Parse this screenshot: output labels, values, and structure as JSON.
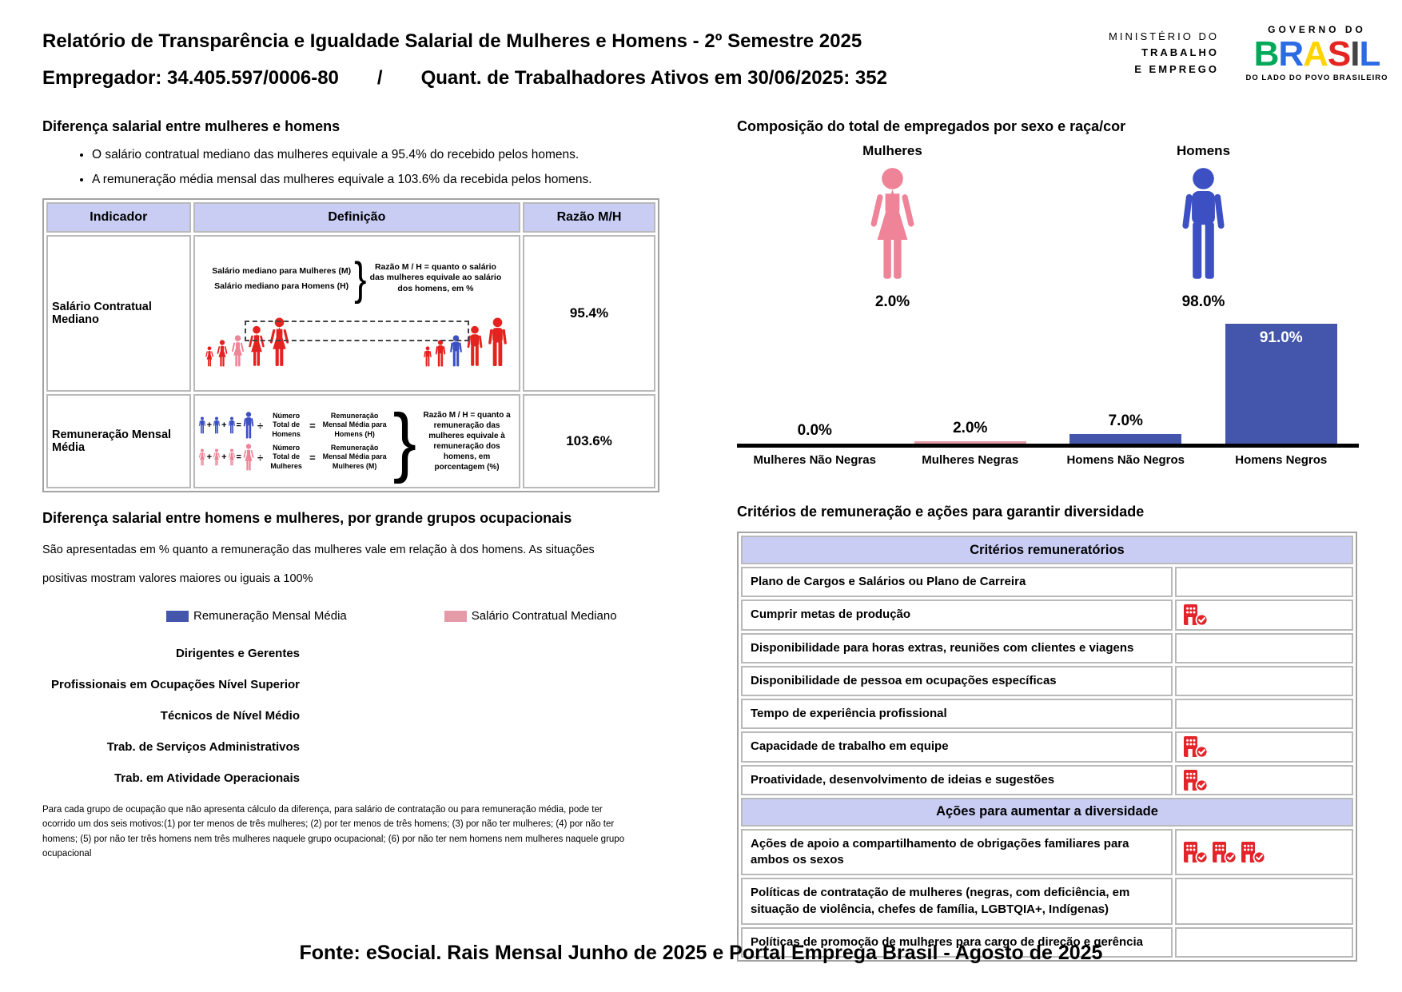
{
  "header": {
    "title": "Relatório de Transparência e Igualdade Salarial de Mulheres e Homens - 2º Semestre 2025",
    "subtitle_employer": "Empregador: 34.405.597/0006-80",
    "subtitle_separator": "/",
    "subtitle_workers": "Quant. de Trabalhadores Ativos em 30/06/2025: 352",
    "ministry_logo_lines": [
      "MINISTÉRIO DO",
      "TRABALHO",
      "E EMPREGO"
    ],
    "gov_logo": {
      "top": "GOVERNO DO",
      "word": "BRASIL",
      "tagline": "DO LADO DO POVO BRASILEIRO"
    }
  },
  "salary_diff": {
    "title": "Diferença salarial entre mulheres e homens",
    "bullets": [
      "O salário contratual mediano das mulheres equivale a 95.4% do recebido pelos homens.",
      "A remuneração média mensal das mulheres equivale a 103.6% da recebida pelos homens."
    ],
    "table": {
      "col_indicador": "Indicador",
      "col_definicao": "Definição",
      "col_razao": "Razão M/H",
      "row1": {
        "indicator": "Salário Contratual Mediano",
        "def_line1": "Salário mediano para Mulheres (M)",
        "def_line2": "Salário mediano para Homens (H)",
        "def_note": "Razão M / H = quanto o salário das mulheres equivale ao salário dos homens, em %",
        "ratio": "95.4%"
      },
      "row2": {
        "indicator": "Remuneração Mensal Média",
        "num_homens": "Número Total de Homens",
        "rem_homens": "Remuneração Mensal Média para Homens (H)",
        "num_mulheres": "Número Total de Mulheres",
        "rem_mulheres": "Remuneração Mensal Média para Mulheres (M)",
        "def_note": "Razão M / H = quanto a remuneração das mulheres equivale à remuneração dos homens, em porcentagem (%)",
        "ratio": "103.6%"
      }
    }
  },
  "composition": {
    "title": "Composição do total de empregados por sexo e raça/cor",
    "female_label": "Mulheres",
    "female_value": "2.0%",
    "male_label": "Homens",
    "male_value": "98.0%"
  },
  "occupational": {
    "title": "Diferença salarial entre homens e mulheres, por grande grupos ocupacionais",
    "description": "São apresentadas em % quanto a remuneração das mulheres vale em relação à dos homens. As situações positivas mostram valores maiores ou iguais a 100%",
    "footnote": "Para cada grupo de ocupação que não apresenta cálculo da diferença, para salário de contratação ou para remuneração média, pode ter ocorrido um dos seis motivos:(1) por ter menos de três mulheres; (2) por ter menos de três homens; (3) por não ter mulheres; (4) por não ter homens; (5) por não ter três homens nem três mulheres naquele grupo ocupacional; (6) por não ter nem homens nem mulheres naquele grupo ocupacional"
  },
  "criteria": {
    "title": "Critérios de remuneração e ações para garantir diversidade",
    "sections": [
      {
        "header": "Critérios remuneratórios",
        "rows": [
          {
            "label": "Plano de Cargos e Salários ou Plano de Carreira",
            "marks": 0
          },
          {
            "label": "Cumprir metas de produção",
            "marks": 1
          },
          {
            "label": "Disponibilidade para horas extras, reuniões com clientes e viagens",
            "marks": 0
          },
          {
            "label": "Disponibilidade de pessoa em ocupações específicas",
            "marks": 0
          },
          {
            "label": "Tempo de experiência profissional",
            "marks": 0
          },
          {
            "label": "Capacidade de trabalho em equipe",
            "marks": 1
          },
          {
            "label": "Proatividade, desenvolvimento de ideias e sugestões",
            "marks": 1
          }
        ]
      },
      {
        "header": "Ações para aumentar a diversidade",
        "rows": [
          {
            "label": "Ações de apoio a compartilhamento de obrigações familiares para ambos os sexos",
            "marks": 3
          },
          {
            "label": "Políticas de contratação de mulheres (negras, com deficiência, em situação de violência, chefes de família, LGBTQIA+, Indígenas)",
            "marks": 0
          },
          {
            "label": "Políticas de promoção de mulheres para cargo de direção e gerência",
            "marks": 0
          }
        ]
      }
    ]
  },
  "footer": {
    "source": "Fonte: eSocial. Rais Mensal Junho de 2025 e Portal Emprega Brasil - Agosto de 2025"
  },
  "colors": {
    "header_band": "#c9cdf4",
    "red_figure": "#e42320",
    "pink_figure": "#ef8498",
    "blue_figure": "#3c50c3",
    "blue_bar": "#4456ab",
    "pink_bar": "#e59aa7",
    "icon_red": "#e3242b"
  },
  "chart_data": [
    {
      "type": "bar",
      "title": "Composição do total de empregados por sexo e raça/cor",
      "categories": [
        "Mulheres Não Negras",
        "Mulheres Negras",
        "Homens Não Negros",
        "Homens Negros"
      ],
      "values": [
        0.0,
        2.0,
        7.0,
        91.0
      ],
      "value_labels": [
        "0.0%",
        "2.0%",
        "7.0%",
        "91.0%"
      ],
      "bar_colors": [
        "#e59aa7",
        "#e59aa7",
        "#4456ab",
        "#4456ab"
      ],
      "ylim": [
        0,
        100
      ],
      "grid": false,
      "annotations": [
        {
          "label": "Mulheres",
          "value": "2.0%"
        },
        {
          "label": "Homens",
          "value": "98.0%"
        }
      ]
    },
    {
      "type": "bar",
      "orientation": "horizontal",
      "title": "Diferença salarial entre homens e mulheres, por grande grupos ocupacionais",
      "categories": [
        "Dirigentes e Gerentes",
        "Profissionais em Ocupações Nível Superior",
        "Técnicos de Nível Médio",
        "Trab. de Serviços Administrativos",
        "Trab. em Atividade Operacionais"
      ],
      "series": [
        {
          "name": "Remuneração Mensal Média",
          "color": "#4456ab",
          "values": [
            null,
            null,
            null,
            null,
            null
          ]
        },
        {
          "name": "Salário Contratual Mediano",
          "color": "#e59aa7",
          "values": [
            null,
            null,
            null,
            null,
            null
          ]
        }
      ],
      "legend_position": "top"
    }
  ]
}
